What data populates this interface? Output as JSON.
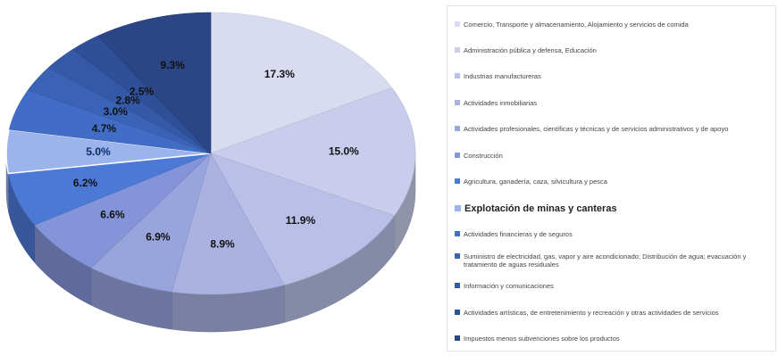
{
  "chart_data": {
    "type": "pie",
    "categories": [
      "Comercio, Transporte y almacenamiento, Alojamiento y servicios de comida",
      "Administración pública y defensa, Educación",
      "Industrias manufactureras",
      "Actividades inmobiliarias",
      "Actividades profesionales, científicas y técnicas y de servicios administrativos y de apoyo",
      "Construcción",
      "Agricultura, ganadería, caza, silvicultura y pesca",
      "Explotación de minas y canteras",
      "Actividades financieras y de seguros",
      "Suministro de electricidad, gas, vapor y aire acondicionado; Distribución de agua; evacuación y tratamiento de aguas residuales",
      "Información y comunicaciones",
      "Actividades artísticas, de entretenimiento y recreación y otras actividades de servicios",
      "Impuestos menos subvenciones sobre los productos"
    ],
    "values": [
      17.3,
      15.0,
      11.9,
      8.9,
      6.9,
      6.6,
      6.2,
      5.0,
      4.7,
      3.0,
      2.8,
      2.5,
      9.3
    ],
    "value_labels": [
      "17.3%",
      "15.0%",
      "11.9%",
      "8.9%",
      "6.9%",
      "6.6%",
      "6.2%",
      "5.0%",
      "4.7%",
      "3.0%",
      "2.8%",
      "2.5%",
      "9.3%"
    ],
    "colors": [
      "#d9dcf0",
      "#c9cdeb",
      "#b9bfe6",
      "#a9b2e0",
      "#98a4dc",
      "#8394d8",
      "#4d79d6",
      "#9bb4ec",
      "#416dc6",
      "#3a63b6",
      "#3459a6",
      "#2f4f98",
      "#2b4585"
    ],
    "highlight_index": 7,
    "legend": "right"
  }
}
